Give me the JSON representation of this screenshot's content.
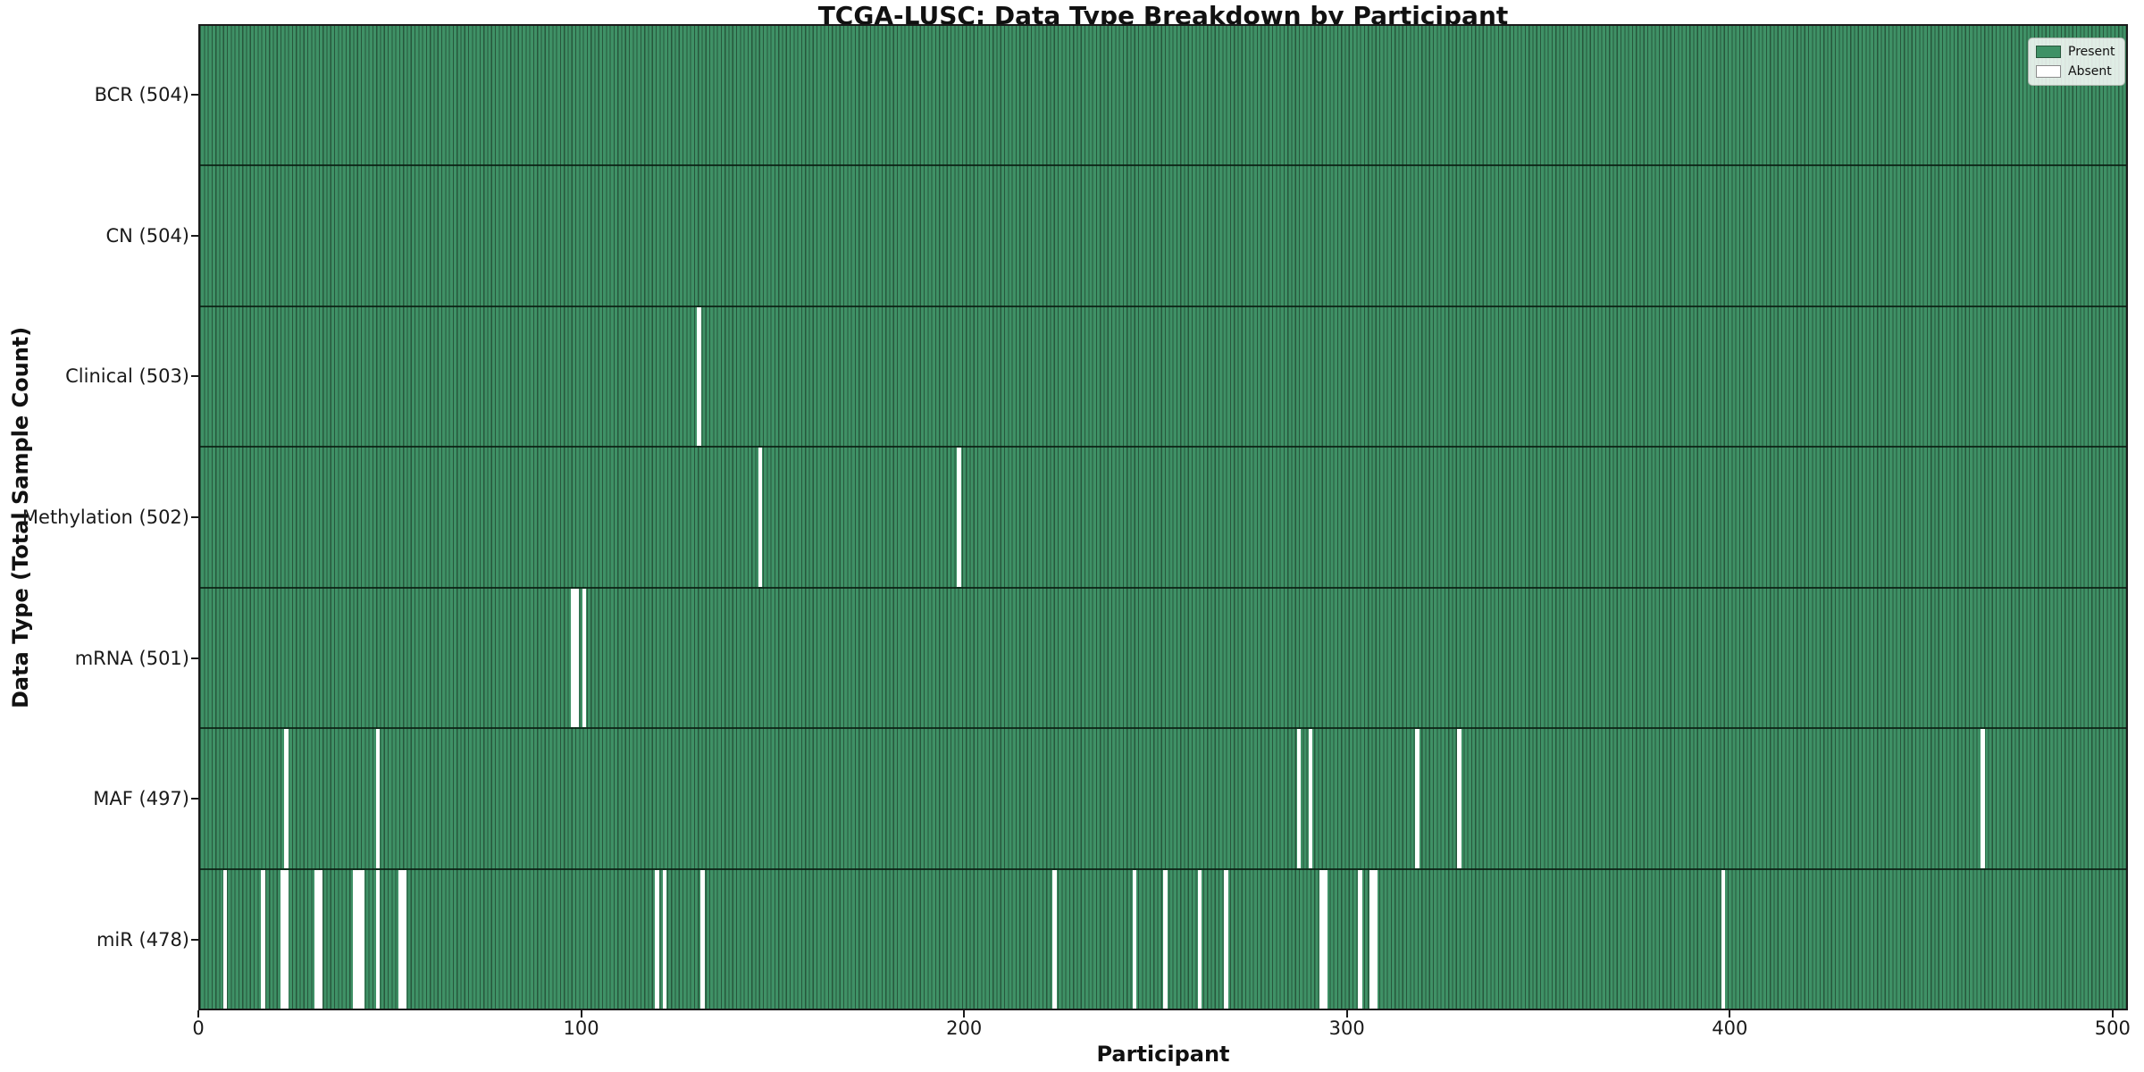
{
  "figure": {
    "title": "TCGA-LUSC: Data Type Breakdown by Participant",
    "x_axis_label": "Participant",
    "y_axis_label": "Data Type (Total Sample Count)"
  },
  "legend": {
    "items": [
      {
        "name": "present",
        "label": "Present",
        "color": "#3f9166",
        "edge": "#27573c"
      },
      {
        "name": "absent",
        "label": "Absent",
        "color": "#ffffff",
        "edge": "#8a8a8a"
      }
    ]
  },
  "chart_data": {
    "type": "heatmap",
    "title": "TCGA-LUSC: Data Type Breakdown by Participant",
    "xlabel": "Participant",
    "ylabel": "Data Type (Total Sample Count)",
    "n_participants": 504,
    "xlim": [
      0,
      504
    ],
    "x_ticks": [
      0,
      100,
      200,
      300,
      400,
      500
    ],
    "grid": false,
    "legend_position": "upper right",
    "colors": {
      "present_fill": "#3f9166",
      "present_edge": "#27573c",
      "absent_fill": "#ffffff",
      "row_divider": "#0d1f15",
      "axis": "#1a1a1a"
    },
    "rows": [
      {
        "data_type": "BCR",
        "label": "BCR (504)",
        "present_count": 504,
        "absent_participants": []
      },
      {
        "data_type": "CN",
        "label": "CN (504)",
        "present_count": 504,
        "absent_participants": []
      },
      {
        "data_type": "Clinical",
        "label": "Clinical (503)",
        "present_count": 503,
        "absent_participants": [
          130
        ]
      },
      {
        "data_type": "Methylation",
        "label": "Methylation (502)",
        "present_count": 502,
        "absent_participants": [
          146,
          198
        ]
      },
      {
        "data_type": "mRNA",
        "label": "mRNA (501)",
        "present_count": 501,
        "absent_participants": [
          97,
          98,
          100
        ]
      },
      {
        "data_type": "MAF",
        "label": "MAF (497)",
        "present_count": 497,
        "absent_participants": [
          22,
          46,
          287,
          290,
          318,
          329,
          466
        ]
      },
      {
        "data_type": "miR",
        "label": "miR (478)",
        "present_count": 478,
        "absent_participants": [
          6,
          16,
          21,
          22,
          30,
          31,
          40,
          41,
          42,
          46,
          52,
          53,
          119,
          121,
          131,
          223,
          244,
          252,
          261,
          268,
          293,
          294,
          303,
          306,
          307,
          398
        ]
      }
    ]
  }
}
